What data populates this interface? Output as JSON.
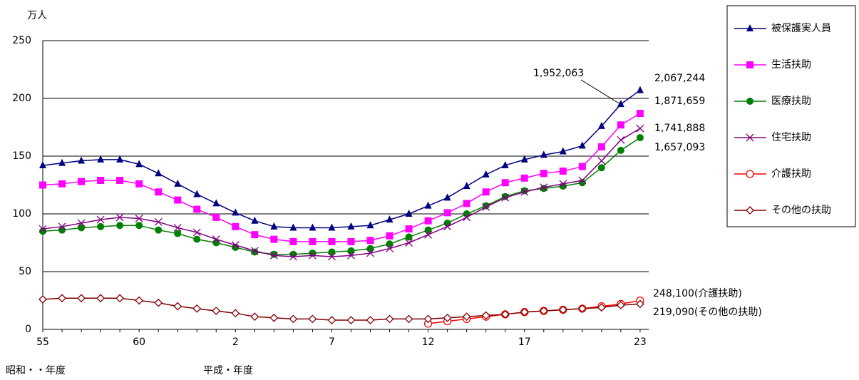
{
  "chart_data": {
    "type": "line",
    "y_unit_label": "万人",
    "x_label_left": "昭和・・年度",
    "x_label_right": "平成・年度",
    "categories": [
      "55",
      null,
      null,
      null,
      null,
      "60",
      null,
      null,
      null,
      null,
      "2",
      null,
      null,
      null,
      null,
      "7",
      null,
      null,
      null,
      null,
      "12",
      null,
      null,
      null,
      null,
      "17",
      null,
      null,
      null,
      null,
      null,
      "23"
    ],
    "ylim": [
      0,
      250
    ],
    "yticks": [
      0,
      50,
      100,
      150,
      200,
      250
    ],
    "grid": true,
    "legend": "right",
    "series": [
      {
        "name": "被保護実人員",
        "color": "#000080",
        "marker": "triangle",
        "values": [
          142,
          144,
          146,
          147,
          147,
          143,
          135,
          126,
          117,
          109,
          101,
          94,
          89,
          88,
          88,
          88,
          89,
          90,
          95,
          100,
          107,
          114,
          124,
          134,
          142,
          147,
          151,
          154,
          159,
          176,
          195,
          207
        ]
      },
      {
        "name": "生活扶助",
        "color": "#ff00ff",
        "marker": "square",
        "values": [
          125,
          126,
          128,
          129,
          129,
          126,
          119,
          112,
          104,
          97,
          89,
          82,
          78,
          76,
          76,
          76,
          76,
          77,
          81,
          87,
          94,
          101,
          109,
          119,
          127,
          131,
          135,
          137,
          141,
          158,
          177,
          187
        ]
      },
      {
        "name": "医療扶助",
        "color": "#008000",
        "marker": "circle",
        "values": [
          85,
          86,
          88,
          89,
          90,
          90,
          86,
          83,
          78,
          75,
          71,
          67,
          65,
          65,
          66,
          67,
          68,
          70,
          74,
          80,
          86,
          92,
          100,
          107,
          115,
          120,
          122,
          124,
          127,
          140,
          155,
          166
        ]
      },
      {
        "name": "住宅扶助",
        "color": "#800080",
        "marker": "x",
        "values": [
          87,
          89,
          92,
          95,
          97,
          96,
          93,
          88,
          84,
          78,
          73,
          68,
          64,
          63,
          64,
          63,
          64,
          66,
          70,
          75,
          82,
          89,
          97,
          106,
          114,
          119,
          123,
          126,
          129,
          146,
          164,
          174
        ]
      },
      {
        "name": "介護扶助",
        "color": "#ff0000",
        "marker": "open-circle",
        "values": [
          null,
          null,
          null,
          null,
          null,
          null,
          null,
          null,
          null,
          null,
          null,
          null,
          null,
          null,
          null,
          null,
          null,
          null,
          null,
          null,
          5,
          7,
          9,
          11,
          13,
          15,
          16,
          17,
          18,
          20,
          22,
          25
        ]
      },
      {
        "name": "その他の扶助",
        "color": "#800000",
        "marker": "open-diamond",
        "values": [
          26,
          27,
          27,
          27,
          27,
          25,
          23,
          20,
          18,
          16,
          14,
          11,
          10,
          9,
          9,
          8,
          8,
          8,
          9,
          9,
          9,
          10,
          11,
          12,
          13,
          15,
          16,
          17,
          18,
          19,
          21,
          22
        ]
      }
    ],
    "annotations": [
      "1,952,063",
      "2,067,244",
      "1,871,659",
      "1,741,888",
      "1,657,093",
      "248,100(介護扶助)",
      "219,090(その他の扶助)"
    ]
  }
}
